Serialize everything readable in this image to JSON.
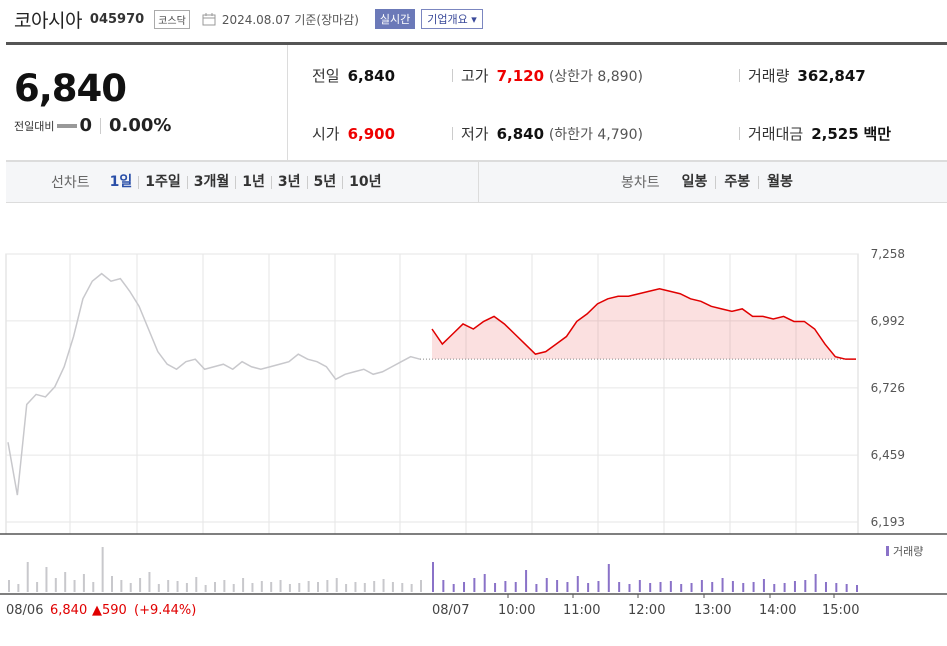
{
  "header": {
    "company": "코아시아",
    "code": "045970",
    "market": "코스닥",
    "date": "2024.08.07 기준(장마감)",
    "realtime_label": "실시간",
    "overview_label": "기업개요 ▾"
  },
  "quote": {
    "price": "6,840",
    "change_label": "전일대비",
    "change_value": "0",
    "change_pct": "0.00%",
    "prev_label": "전일",
    "prev_value": "6,840",
    "open_label": "시가",
    "open_value": "6,900",
    "high_label": "고가",
    "high_value": "7,120",
    "upper_limit": "(상한가 8,890)",
    "low_label": "저가",
    "low_value": "6,840",
    "lower_limit": "(하한가 4,790)",
    "volume_label": "거래량",
    "volume_value": "362,847",
    "amount_label": "거래대금",
    "amount_value": "2,525",
    "amount_unit": "백만"
  },
  "periods": {
    "label": "선차트",
    "items": [
      "1일",
      "1주일",
      "3개월",
      "1년",
      "3년",
      "5년",
      "10년"
    ],
    "active": "1일"
  },
  "candles": {
    "label": "봉차트",
    "items": [
      "일봉",
      "주봉",
      "월봉"
    ]
  },
  "colors": {
    "up": "#e00000",
    "prev_day_line": "#c8c8cc",
    "volume_prev": "#c8c8cc",
    "volume_today": "#8a72c8",
    "grid": "#e6e6e6"
  },
  "chart_data": {
    "type": "line",
    "baseline": 6840,
    "ylim": [
      6193,
      7258
    ],
    "y_ticks": [
      "7,258",
      "6,992",
      "6,726",
      "6,459",
      "6,193"
    ],
    "x_labels": [
      "08/06",
      "08/07",
      "10:00",
      "11:00",
      "12:00",
      "13:00",
      "14:00",
      "15:00"
    ],
    "prev_day_summary": {
      "date": "08/06",
      "close": "6,840",
      "change": "▲590",
      "change_pct": "(+9.44%)"
    },
    "volume_legend": "거래량",
    "prev_day_series": {
      "name": "08/06",
      "values": [
        6510,
        6300,
        6660,
        6700,
        6690,
        6730,
        6810,
        6930,
        7080,
        7150,
        7180,
        7150,
        7160,
        7110,
        7050,
        6960,
        6870,
        6820,
        6800,
        6830,
        6840,
        6800,
        6810,
        6820,
        6800,
        6830,
        6810,
        6800,
        6810,
        6820,
        6830,
        6860,
        6840,
        6830,
        6810,
        6760,
        6780,
        6790,
        6800,
        6780,
        6790,
        6810,
        6830,
        6850,
        6840
      ]
    },
    "today_series": {
      "name": "08/07",
      "values": [
        6960,
        6900,
        6940,
        6980,
        6960,
        6990,
        7010,
        6980,
        6940,
        6900,
        6860,
        6870,
        6900,
        6930,
        6990,
        7020,
        7060,
        7080,
        7090,
        7090,
        7100,
        7110,
        7120,
        7110,
        7100,
        7080,
        7070,
        7050,
        7040,
        7030,
        7040,
        7010,
        7010,
        7000,
        7010,
        6990,
        6990,
        6960,
        6900,
        6850,
        6840,
        6840
      ]
    },
    "volume_prev": [
      12,
      8,
      30,
      10,
      25,
      14,
      20,
      12,
      18,
      10,
      45,
      16,
      12,
      9,
      14,
      20,
      8,
      12,
      11,
      9,
      15,
      7,
      10,
      12,
      8,
      14,
      9,
      11,
      10,
      12,
      8,
      9,
      11,
      10,
      12,
      14,
      8,
      10,
      9,
      11,
      13,
      10,
      9,
      8,
      12
    ],
    "volume_today": [
      30,
      12,
      8,
      10,
      14,
      18,
      9,
      11,
      10,
      22,
      8,
      14,
      12,
      10,
      16,
      9,
      11,
      28,
      10,
      8,
      12,
      9,
      10,
      11,
      8,
      9,
      12,
      10,
      14,
      11,
      9,
      10,
      13,
      8,
      9,
      11,
      12,
      18,
      10,
      9,
      8,
      7
    ]
  }
}
